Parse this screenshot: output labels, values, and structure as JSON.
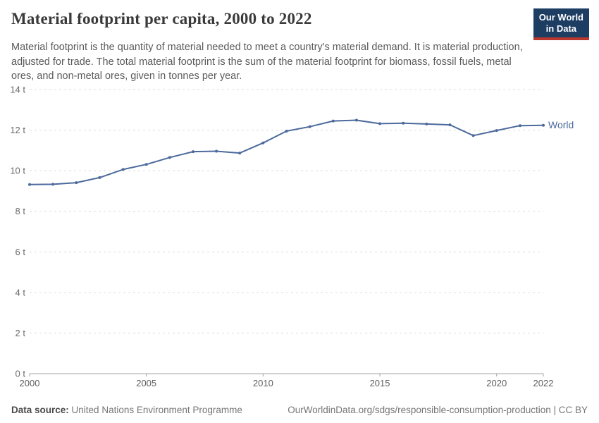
{
  "header": {
    "title": "Material footprint per capita, 2000 to 2022",
    "logo": {
      "line1": "Our World",
      "line2": "in Data"
    }
  },
  "subtitle": "Material footprint is the quantity of material needed to meet a country's material demand. It is material production, adjusted for trade. The total material footprint is the sum of the material footprint for biomass, fossil fuels, metal ores, and non-metal ores, given in tonnes per year.",
  "chart_data": {
    "type": "line",
    "title": "Material footprint per capita, 2000 to 2022",
    "unit": "t",
    "x": [
      2000,
      2001,
      2002,
      2003,
      2004,
      2005,
      2006,
      2007,
      2008,
      2009,
      2010,
      2011,
      2012,
      2013,
      2014,
      2015,
      2016,
      2017,
      2018,
      2019,
      2020,
      2021,
      2022
    ],
    "series": [
      {
        "name": "World",
        "color": "#4c6a9c",
        "values": [
          9.32,
          9.33,
          9.41,
          9.66,
          10.06,
          10.31,
          10.65,
          10.94,
          10.96,
          10.87,
          11.37,
          11.95,
          12.17,
          12.45,
          12.49,
          12.32,
          12.34,
          12.3,
          12.26,
          11.73,
          11.98,
          12.22,
          12.24
        ]
      }
    ],
    "ylim": [
      0,
      14
    ],
    "y_ticks": [
      0,
      2,
      4,
      6,
      8,
      10,
      12,
      14
    ],
    "x_ticks": [
      2000,
      2005,
      2010,
      2015,
      2020,
      2022
    ],
    "grid": "horizontal-dashed",
    "legend": "line-end-label"
  },
  "footer": {
    "datasource_label": "Data source:",
    "datasource_value": "United Nations Environment Programme",
    "link": "OurWorldinData.org/sdgs/responsible-consumption-production | CC BY"
  },
  "colors": {
    "line-blue": "#4c6a9c",
    "logo-navy": "#1d3d63",
    "logo-red": "#b9372d",
    "grid-gray": "#dcdcdc",
    "axis-gray": "#a3a3a3"
  }
}
